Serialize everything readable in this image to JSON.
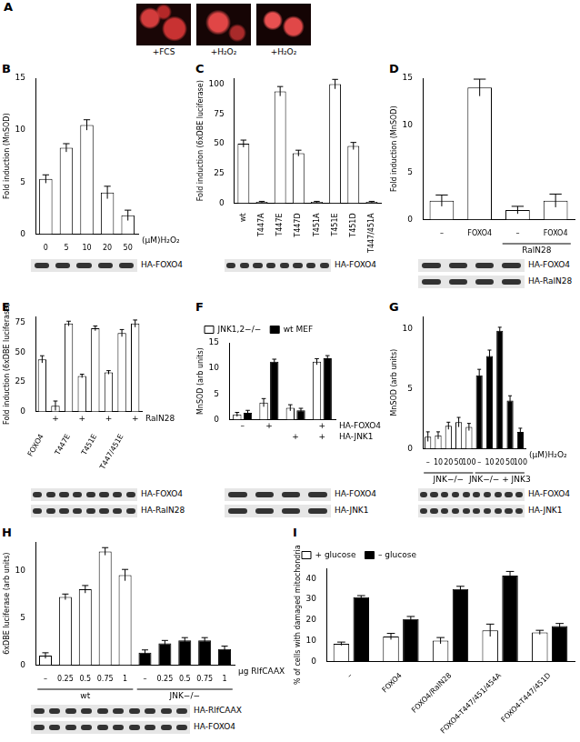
{
  "panel_a": {
    "panel": "A",
    "images": [
      "+FCS",
      "+H₂O₂",
      "+H₂O₂"
    ]
  },
  "chart_data": [
    {
      "panel": "B",
      "type": "bar",
      "y_label": "Fold induction (MnSOD)",
      "x_label": "(μM)H₂O₂",
      "categories": [
        "0",
        "5",
        "10",
        "20",
        "50"
      ],
      "values": [
        5.3,
        8.3,
        10.5,
        4.0,
        1.8
      ],
      "errors": [
        0.4,
        0.4,
        0.5,
        0.6,
        0.5
      ],
      "color": "#ffffff",
      "ylim": [
        0,
        15
      ],
      "yticks": [
        0,
        5,
        10,
        15
      ],
      "grid": false,
      "blots": [
        "HA-FOXO4"
      ]
    },
    {
      "panel": "C",
      "type": "bar",
      "y_label": "Fold induction (6xDBE luciferase)",
      "categories": [
        "wt",
        "T447A",
        "T447E",
        "T447D",
        "T451A",
        "T451E",
        "T451D",
        "T447/451A"
      ],
      "values": [
        50,
        1,
        94,
        42,
        1,
        100,
        48,
        1
      ],
      "errors": [
        3,
        0.5,
        4,
        2.5,
        0.5,
        4,
        3,
        0.5
      ],
      "color": "#ffffff",
      "ylim": [
        0,
        105
      ],
      "yticks": [
        0,
        25,
        50,
        75,
        100
      ],
      "grid": false,
      "blots": [
        "HA-FOXO4"
      ]
    },
    {
      "panel": "D",
      "type": "bar",
      "y_label": "Fold induction (MnSOD)",
      "categories": [
        "–",
        "FOXO4",
        "–",
        "FOXO4"
      ],
      "group_of": [
        null,
        null,
        "RalN28",
        "RalN28"
      ],
      "values": [
        2,
        14,
        1,
        2
      ],
      "errors": [
        0.6,
        0.9,
        0.4,
        0.7
      ],
      "color": "#ffffff",
      "ylim": [
        0,
        15
      ],
      "yticks": [
        0,
        5,
        10,
        15
      ],
      "grid": false,
      "blots": [
        "HA-FOXO4",
        "HA-RalN28"
      ]
    },
    {
      "panel": "E",
      "type": "bar",
      "y_label": "Fold induction (6xDBE luciferase)",
      "categories": [
        "FOXO4",
        null,
        "T447E",
        null,
        "T451E",
        null,
        "T447/451E",
        null
      ],
      "rows": [
        {
          "label": "RalN28",
          "marks": [
            null,
            "+",
            null,
            "+",
            null,
            "+",
            null,
            "+"
          ]
        }
      ],
      "values": [
        44,
        5,
        74,
        30,
        70,
        33,
        66,
        74
      ],
      "errors": [
        3,
        4,
        2,
        1.5,
        2,
        1.5,
        3,
        3
      ],
      "color": "#ffffff",
      "ylim": [
        0,
        80
      ],
      "yticks": [
        0,
        25,
        50,
        75
      ],
      "grid": false,
      "blots": [
        "HA-FOXO4",
        "HA-RalN28"
      ]
    },
    {
      "panel": "F",
      "type": "bar",
      "y_label": "MnSOD (arb units)",
      "categories": [
        null,
        null,
        null,
        null
      ],
      "rows": [
        {
          "label": "HA-FOXO4",
          "marks": [
            "–",
            "+",
            null,
            "+"
          ]
        },
        {
          "label": "HA-JNK1",
          "marks": [
            null,
            null,
            "+",
            "+"
          ]
        }
      ],
      "series": [
        {
          "name": "JNK1,2−/−",
          "color": "#ffffff",
          "values": [
            1,
            3.3,
            2.3,
            11.3
          ],
          "errors": [
            0.4,
            0.8,
            0.6,
            0.6
          ]
        },
        {
          "name": "wt MEF",
          "color": "#000000",
          "values": [
            1.3,
            11.3,
            1.8,
            12
          ],
          "errors": [
            0.5,
            0.5,
            0.4,
            0.5
          ]
        }
      ],
      "legend": "upper left",
      "ylim": [
        0,
        15
      ],
      "yticks": [
        0,
        5,
        10,
        15
      ],
      "grid": false,
      "blots": [
        "HA-FOXO4",
        "HA-JNK1"
      ]
    },
    {
      "panel": "G",
      "type": "bar",
      "y_label": "MnSOD (arb units)",
      "x_label": "(μM)H₂O₂",
      "categories": [
        "–",
        "10",
        "20",
        "50",
        "100",
        "–",
        "10",
        "20",
        "50",
        "100"
      ],
      "group_of": [
        "JNK−/−",
        "JNK−/−",
        "JNK−/−",
        "JNK−/−",
        "JNK−/−",
        "JNK−/− + JNK3",
        "JNK−/− + JNK3",
        "JNK−/− + JNK3",
        "JNK−/− + JNK3",
        "JNK−/− + JNK3"
      ],
      "values": [
        1,
        1.1,
        1.9,
        2.2,
        1.8,
        6.1,
        7.7,
        9.8,
        4.0,
        1.4
      ],
      "errors": [
        0.4,
        0.3,
        0.3,
        0.4,
        0.3,
        0.5,
        0.5,
        0.3,
        0.4,
        0.3
      ],
      "colors": [
        "#ffffff",
        "#ffffff",
        "#ffffff",
        "#ffffff",
        "#ffffff",
        "#000000",
        "#000000",
        "#000000",
        "#000000",
        "#000000"
      ],
      "ylim": [
        0,
        11
      ],
      "yticks": [
        0,
        5,
        10
      ],
      "grid": false,
      "blots": [
        "HA-FOXO4",
        "HA-JNK1"
      ]
    },
    {
      "panel": "H",
      "type": "bar",
      "y_label": "6xDBE luciferase (arb units)",
      "x_label": "μg RlfCAAX",
      "categories": [
        "–",
        "0.25",
        "0.5",
        "0.75",
        "1",
        "–",
        "0.25",
        "0.5",
        "0.75",
        "1"
      ],
      "group_of": [
        "wt",
        "wt",
        "wt",
        "wt",
        "wt",
        "JNK−/−",
        "JNK−/−",
        "JNK−/−",
        "JNK−/−",
        "JNK−/−"
      ],
      "values": [
        1,
        7.2,
        8,
        12,
        9.5,
        1.3,
        2.3,
        2.6,
        2.6,
        1.7
      ],
      "errors": [
        0.3,
        0.3,
        0.4,
        0.4,
        0.6,
        0.3,
        0.3,
        0.3,
        0.3,
        0.3
      ],
      "colors": [
        "#ffffff",
        "#ffffff",
        "#ffffff",
        "#ffffff",
        "#ffffff",
        "#000000",
        "#000000",
        "#000000",
        "#000000",
        "#000000"
      ],
      "ylim": [
        0,
        13
      ],
      "yticks": [
        0,
        5,
        10
      ],
      "grid": false,
      "blots": [
        "HA-RlfCAAX",
        "HA-FOXO4"
      ]
    },
    {
      "panel": "I",
      "type": "bar",
      "y_label": "% of cells with damaged mitochondria",
      "categories": [
        "–",
        "FOXO4",
        "FOXO4/RalN28",
        "FOXO4-T447/451/454A",
        "FOXO4-T447/451D"
      ],
      "series": [
        {
          "name": "+ glucose",
          "color": "#ffffff",
          "values": [
            8.5,
            12,
            10,
            15,
            14
          ],
          "errors": [
            0.8,
            1.5,
            1.5,
            3,
            1
          ]
        },
        {
          "name": "– glucose",
          "color": "#000000",
          "values": [
            31,
            20.5,
            35,
            41.5,
            17
          ],
          "errors": [
            0.8,
            1.2,
            1.3,
            2,
            1.3
          ]
        }
      ],
      "legend": "upper left",
      "ylim": [
        0,
        45
      ],
      "yticks": [
        0,
        10,
        20,
        30,
        40
      ],
      "grid": false
    }
  ]
}
